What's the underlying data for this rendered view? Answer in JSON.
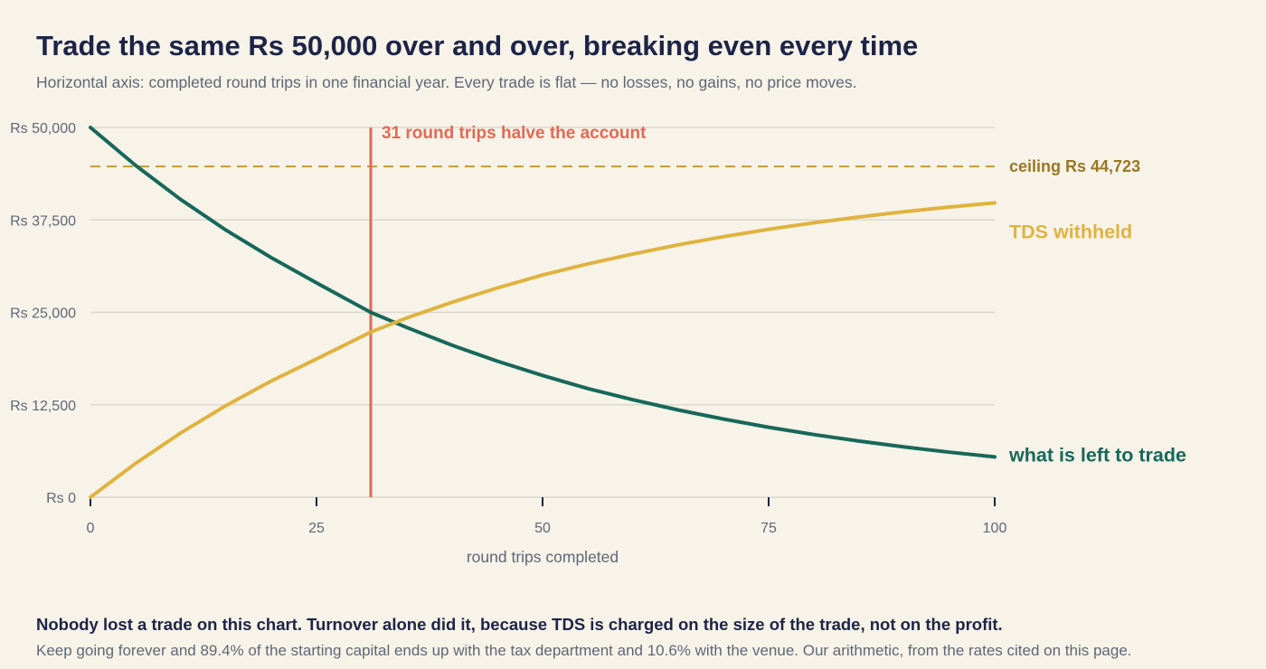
{
  "title": "Trade the same Rs 50,000 over and over, breaking even every time",
  "subtitle": "Horizontal axis: completed round trips in one financial year. Every trade is flat — no losses, no gains, no price moves.",
  "footer": {
    "headline": "Nobody lost a trade on this chart. Turnover alone did it, because TDS is charged on the size of the trade, not on the profit.",
    "detail": "Keep going forever and 89.4% of the starting capital ends up with the tax department and 10.6% with the venue. Our arithmetic, from the rates cited on this page."
  },
  "colors": {
    "remaining": "#17685a",
    "tds": "#e0b340",
    "ceiling": "#c49a33",
    "ceiling_label": "#9a7722",
    "marker": "#e06a55",
    "grid": "#dcd8cd",
    "text": "#5f6775"
  },
  "chart_data": {
    "type": "line",
    "xlabel": "round trips completed",
    "ylabel": "",
    "xlim": [
      0,
      100
    ],
    "ylim": [
      0,
      50000
    ],
    "x_ticks": [
      0,
      25,
      50,
      75,
      100
    ],
    "x_tick_labels": [
      "0",
      "25",
      "50",
      "75",
      "100"
    ],
    "y_ticks": [
      0,
      12500,
      25000,
      37500,
      50000
    ],
    "y_tick_labels": [
      "Rs 0",
      "Rs 12,500",
      "Rs 25,000",
      "Rs 37,500",
      "Rs 50,000"
    ],
    "grid": true,
    "series": [
      {
        "name": "what is left to trade",
        "x": [
          0,
          5,
          10,
          15,
          20,
          25,
          31,
          35,
          40,
          45,
          50,
          55,
          60,
          65,
          70,
          75,
          80,
          85,
          90,
          95,
          100
        ],
        "values": [
          50000,
          44860,
          40250,
          36110,
          32400,
          28990,
          25000,
          22950,
          20550,
          18400,
          16470,
          14700,
          13180,
          11800,
          10570,
          9460,
          8470,
          7590,
          6800,
          6090,
          5450
        ]
      },
      {
        "name": "TDS withheld",
        "x": [
          0,
          5,
          10,
          15,
          20,
          25,
          31,
          35,
          40,
          45,
          50,
          55,
          60,
          65,
          70,
          75,
          80,
          85,
          90,
          95,
          100
        ],
        "values": [
          0,
          4580,
          8700,
          12400,
          15720,
          18690,
          22330,
          24260,
          26370,
          28300,
          30050,
          31550,
          32900,
          34130,
          35230,
          36240,
          37110,
          37900,
          38610,
          39240,
          39800
        ]
      }
    ],
    "reference_lines": [
      {
        "orientation": "horizontal",
        "value": 44723,
        "label": "ceiling Rs 44,723",
        "style": "dashed"
      },
      {
        "orientation": "vertical",
        "value": 31,
        "label": "31 round trips halve the account",
        "style": "solid"
      }
    ]
  }
}
